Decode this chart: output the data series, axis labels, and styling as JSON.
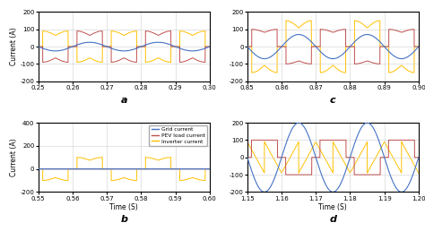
{
  "subplot_a": {
    "xlim": [
      0.25,
      0.3
    ],
    "ylim": [
      -200,
      200
    ],
    "yticks": [
      -200,
      -100,
      0,
      100,
      200
    ],
    "xticks": [
      0.25,
      0.26,
      0.27,
      0.28,
      0.29,
      0.3
    ],
    "xlabel": "",
    "ylabel": "Current (A)",
    "label": "a",
    "grid_amp": 25,
    "pev_amp": 90,
    "inv_amp": 90
  },
  "subplot_b": {
    "xlim": [
      0.55,
      0.6
    ],
    "ylim": [
      -200,
      400
    ],
    "yticks": [
      -200,
      0,
      200,
      400
    ],
    "xticks": [
      0.55,
      0.56,
      0.57,
      0.58,
      0.59,
      0.6
    ],
    "xlabel": "Time (S)",
    "ylabel": "Current (A)",
    "label": "b",
    "grid_amp": 5,
    "inv_amp": 100
  },
  "subplot_c": {
    "xlim": [
      0.85,
      0.9
    ],
    "ylim": [
      -200,
      200
    ],
    "yticks": [
      -200,
      -100,
      0,
      100,
      200
    ],
    "xticks": [
      0.85,
      0.86,
      0.87,
      0.88,
      0.89,
      0.9
    ],
    "xlabel": "",
    "ylabel": "",
    "label": "c",
    "grid_amp": 70,
    "pev_amp": 100,
    "inv_amp": 150
  },
  "subplot_d": {
    "xlim": [
      1.15,
      1.2
    ],
    "ylim": [
      -200,
      200
    ],
    "yticks": [
      -200,
      -100,
      0,
      100,
      200
    ],
    "xticks": [
      1.15,
      1.16,
      1.17,
      1.18,
      1.19,
      1.2
    ],
    "xlabel": "Time (S)",
    "ylabel": "",
    "label": "d",
    "grid_amp": 200,
    "pev_amp": 100,
    "inv_amp": 100
  },
  "colors": {
    "grid": "#4472C4",
    "pev": "#C0504D",
    "inverter": "#FFC000"
  },
  "legend": {
    "entries": [
      "Grid current",
      "PEV load current",
      "Inverter current"
    ]
  },
  "freq": 50
}
